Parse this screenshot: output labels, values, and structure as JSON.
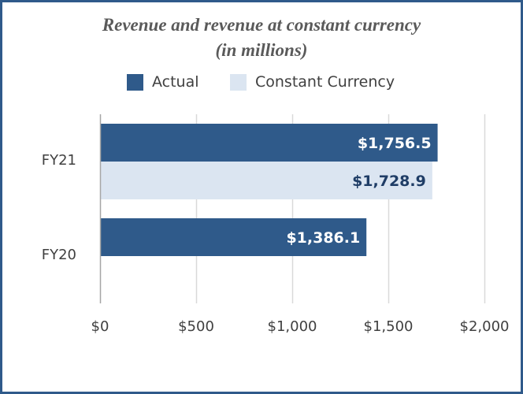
{
  "chart_data": {
    "type": "bar",
    "orientation": "horizontal",
    "title": "Revenue and revenue at constant currency",
    "subtitle": "(in millions)",
    "categories": [
      "FY21",
      "FY20"
    ],
    "series": [
      {
        "name": "Actual",
        "values": [
          1756.5,
          1386.1
        ],
        "labels": [
          "$1,756.5",
          "$1,386.1"
        ],
        "color": "#2f5a8a",
        "label_color": "#ffffff"
      },
      {
        "name": "Constant Currency",
        "values": [
          1728.9,
          null
        ],
        "labels": [
          "$1,728.9",
          ""
        ],
        "color": "#dbe5f1",
        "label_color": "#1f3d66"
      }
    ],
    "xlim": [
      0,
      2000
    ],
    "x_ticks": [
      0,
      500,
      1000,
      1500,
      2000
    ],
    "x_tick_labels": [
      "$0",
      "$500",
      "$1,000",
      "$1,500",
      "$2,000"
    ],
    "grid": true,
    "legend_position": "top"
  },
  "colors": {
    "frame": "#2f5a8a",
    "gridline": "#d9d9d9",
    "axis": "#a6a6a6"
  }
}
